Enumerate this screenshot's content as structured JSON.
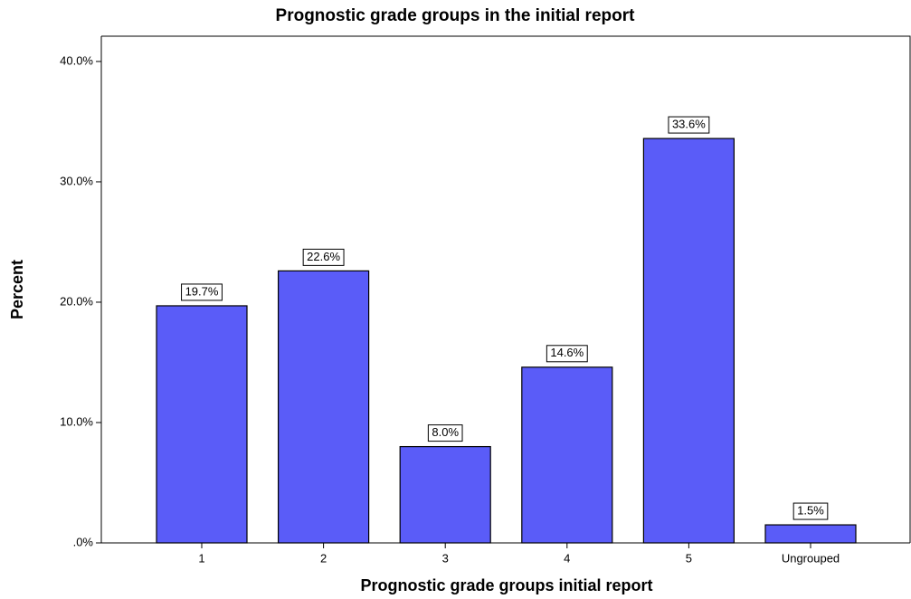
{
  "chart_data": {
    "type": "bar",
    "title": "Prognostic grade groups in the initial report",
    "x_label": "Prognostic grade groups initial report",
    "y_label": "Percent",
    "categories": [
      "1",
      "2",
      "3",
      "4",
      "5",
      "Ungrouped"
    ],
    "values": [
      19.7,
      22.6,
      8.0,
      14.6,
      33.6,
      1.5
    ],
    "value_labels": [
      "19.7%",
      "22.6%",
      "8.0%",
      "14.6%",
      "33.6%",
      "1.5%"
    ],
    "color": "#5a5cf8",
    "ylim": [
      0,
      42.1
    ],
    "yticks": [
      {
        "value": 0,
        "label": ".0%"
      },
      {
        "value": 10,
        "label": "10.0%"
      },
      {
        "value": 20,
        "label": "20.0%"
      },
      {
        "value": 30,
        "label": "30.0%"
      },
      {
        "value": 40,
        "label": "40.0%"
      }
    ],
    "grid": false
  }
}
